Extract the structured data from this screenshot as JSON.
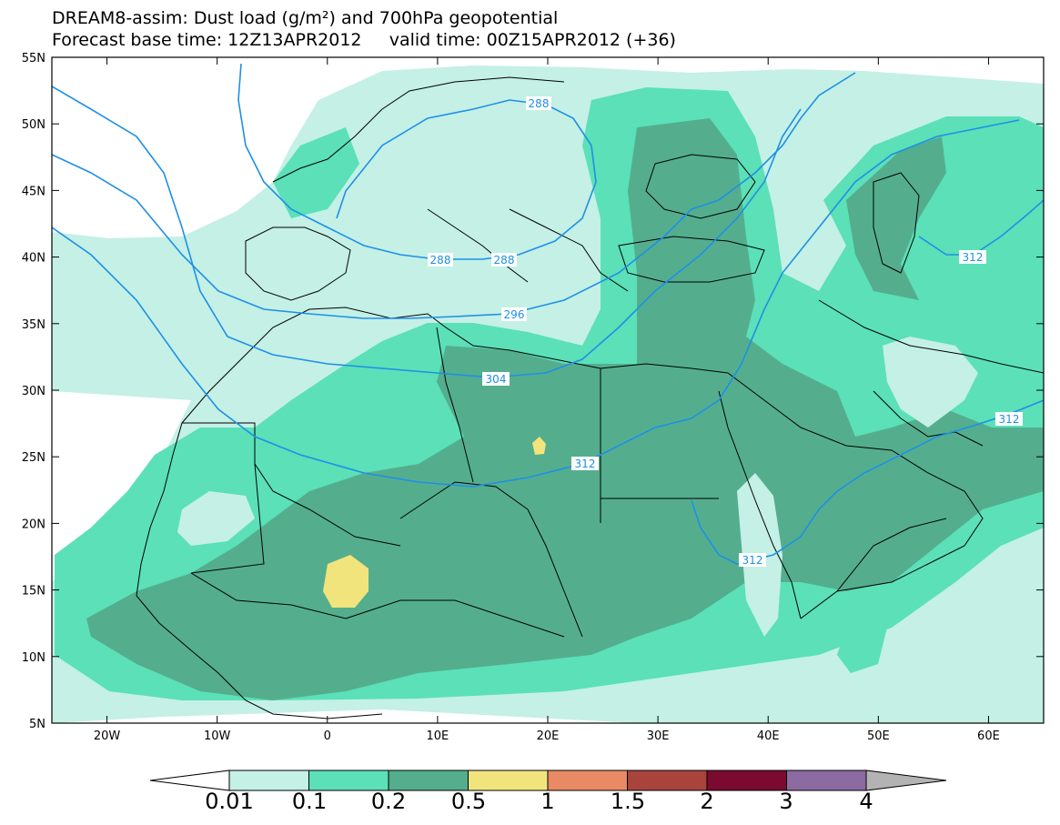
{
  "header": {
    "line1": "DREAM8-assim: Dust load (g/m²) and 700hPa geopotential",
    "line2": "Forecast base time: 12Z13APR2012     valid time: 00Z15APR2012 (+36)"
  },
  "map": {
    "lon_range": [
      -25,
      65
    ],
    "lat_range": [
      5,
      55
    ],
    "lon_ticks": [
      "20W",
      "10W",
      "0",
      "10E",
      "20E",
      "30E",
      "40E",
      "50E",
      "60E"
    ],
    "lat_ticks": [
      "55N",
      "50N",
      "45N",
      "40N",
      "35N",
      "30N",
      "25N",
      "20N",
      "15N",
      "10N",
      "5N"
    ],
    "contour_color": "#1e90e6",
    "contour_labels": [
      "288",
      "288",
      "288",
      "296",
      "304",
      "312",
      "312",
      "312",
      "312"
    ]
  },
  "colorbar": {
    "labels": [
      "0.01",
      "0.1",
      "0.2",
      "0.5",
      "1",
      "1.5",
      "2",
      "3",
      "4"
    ],
    "colors": [
      "#ffffff",
      "#c4f0e6",
      "#5be0b8",
      "#54ae8e",
      "#f2e47c",
      "#e88a64",
      "#a8443c",
      "#7a0a30",
      "#8c6aa2",
      "#b3b3b3"
    ]
  }
}
